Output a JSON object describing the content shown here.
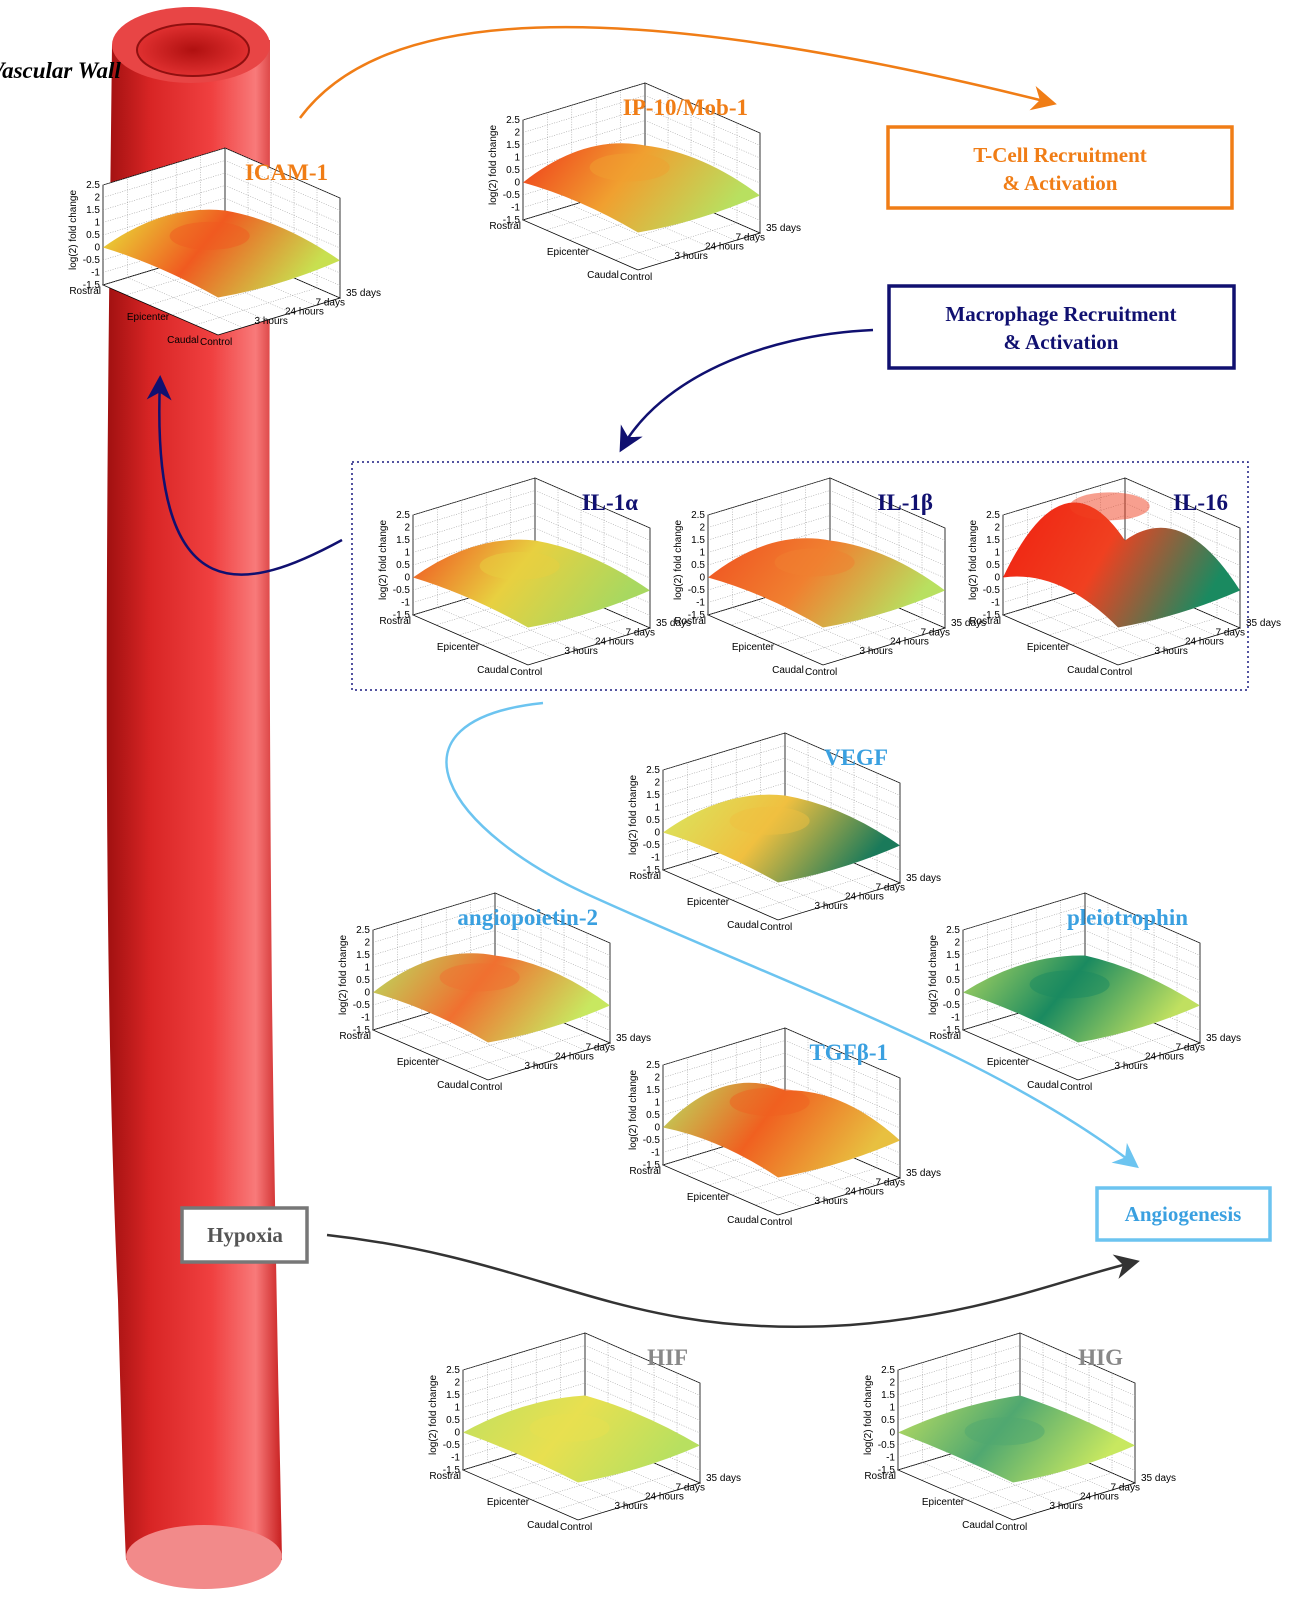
{
  "label": "Vascular Wall",
  "boxes": {
    "t_cell": "T-Cell Recruitment & Activation",
    "macrophage": "Macrophage Recruitment & Activation",
    "angiogenesis": "Angiogenesis",
    "hypoxia": "Hypoxia"
  },
  "plot_axes": {
    "z_label": "log(2) fold change",
    "z_ticks": [
      "2.5",
      "2",
      "1.5",
      "1",
      "0.5",
      "0",
      "-0.5",
      "-1",
      "-1.5"
    ],
    "location": [
      "Rostral",
      "Epicenter",
      "Caudal"
    ],
    "time": [
      "Control",
      "3 hours",
      "24 hours",
      "7 days",
      "35 days"
    ]
  },
  "plots": [
    {
      "title": "ICAM-1"
    },
    {
      "title": "IP-10/Mob-1"
    },
    {
      "title": "IL-1α"
    },
    {
      "title": "IL-1β"
    },
    {
      "title": "IL-16"
    },
    {
      "title": "VEGF"
    },
    {
      "title": "angiopoietin-2"
    },
    {
      "title": "pleiotrophin"
    },
    {
      "title": "TGFβ-1"
    },
    {
      "title": "HIF"
    },
    {
      "title": "HIG"
    }
  ]
}
